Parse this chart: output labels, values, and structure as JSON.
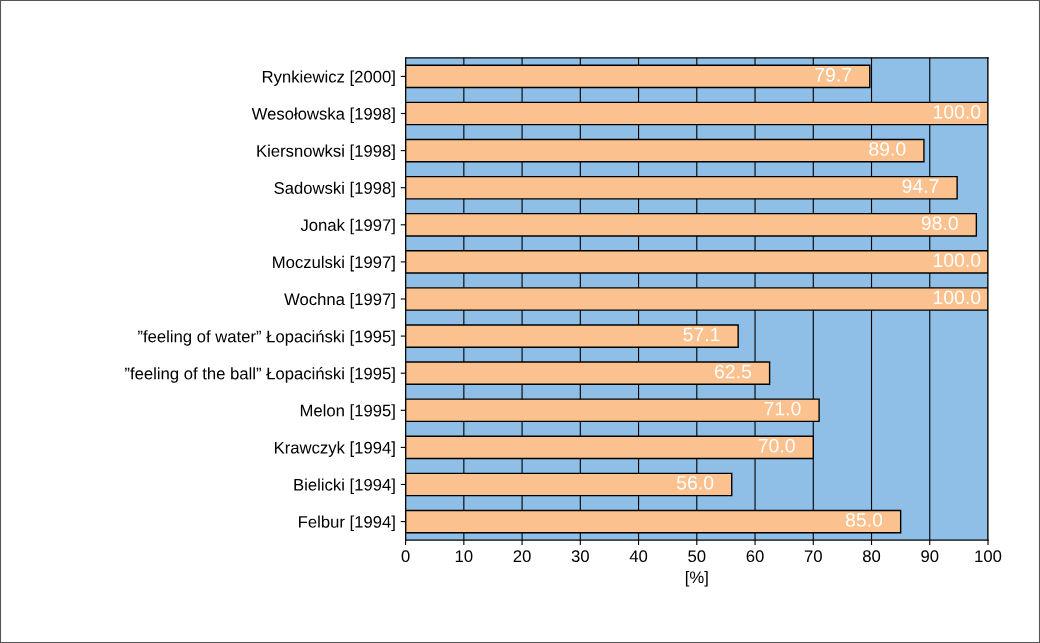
{
  "chart_data": {
    "type": "bar",
    "orientation": "horizontal",
    "xlabel": "[%]",
    "categories": [
      "Rynkiewicz [2000]",
      "Wesołowska [1998]",
      "Kiersnowksi [1998]",
      "Sadowski [1998]",
      "Jonak [1997]",
      "Moczulski [1997]",
      "Wochna [1997]",
      "”feeling of water” Łopaciński [1995]",
      "”feeling of the ball” Łopaciński [1995]",
      "Melon [1995]",
      "Krawczyk [1994]",
      "Bielicki [1994]",
      "Felbur [1994]"
    ],
    "values": [
      79.7,
      100.0,
      89.0,
      94.7,
      98.0,
      100.0,
      100.0,
      57.1,
      62.5,
      71.0,
      70.0,
      56.0,
      85.0
    ],
    "value_labels": [
      "79.7",
      "100.0",
      "89.0",
      "94.7",
      "98.0",
      "100.0",
      "100.0",
      "57.1",
      "62.5",
      "71.0",
      "70.0",
      "56.0",
      "85.0"
    ],
    "color": "#fbc28f",
    "xlim": [
      0,
      100
    ],
    "xticks": [
      0,
      10,
      20,
      30,
      40,
      50,
      60,
      70,
      80,
      90,
      100
    ],
    "grid": "x"
  }
}
